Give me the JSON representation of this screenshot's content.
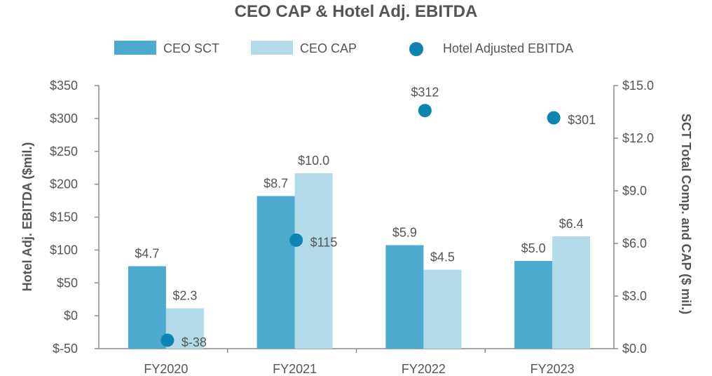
{
  "chart_data": {
    "type": "bar",
    "title": "CEO CAP & Hotel Adj. EBITDA",
    "categories": [
      "FY2020",
      "FY2021",
      "FY2022",
      "FY2023"
    ],
    "series": [
      {
        "name": "CEO SCT",
        "kind": "bar",
        "axis": "right",
        "color": "#4baacd",
        "values": [
          4.7,
          8.7,
          5.9,
          5.0
        ],
        "labels": [
          "$4.7",
          "$8.7",
          "$5.9",
          "$5.0"
        ]
      },
      {
        "name": "CEO CAP",
        "kind": "bar",
        "axis": "right",
        "color": "#b3dae9",
        "values": [
          2.3,
          10.0,
          4.5,
          6.4
        ],
        "labels": [
          "$2.3",
          "$10.0",
          "$4.5",
          "$6.4"
        ]
      },
      {
        "name": "Hotel Adjusted EBITDA",
        "kind": "scatter",
        "axis": "left",
        "color": "#0f84b3",
        "values": [
          -38,
          115,
          312,
          301
        ],
        "labels": [
          "$-38",
          "$115",
          "$312",
          "$301"
        ]
      }
    ],
    "y_left": {
      "label": "Hotel Adj. EBITDA ($mil.)",
      "min": -50,
      "max": 350,
      "ticks": [
        -50,
        0,
        50,
        100,
        150,
        200,
        250,
        300,
        350
      ],
      "tick_labels": [
        "$-50",
        "$0",
        "$50",
        "$100",
        "$150",
        "$200",
        "$250",
        "$300",
        "$350"
      ]
    },
    "y_right": {
      "label": "SCT Total Comp. and CAP ($ mil.)",
      "min": 0,
      "max": 15,
      "ticks": [
        0,
        3,
        6,
        9,
        12,
        15
      ],
      "tick_labels": [
        "$0.0",
        "$3.0",
        "$6.0",
        "$9.0",
        "$12.0",
        "$15.0"
      ]
    },
    "legend_position": "top",
    "grid": false
  }
}
